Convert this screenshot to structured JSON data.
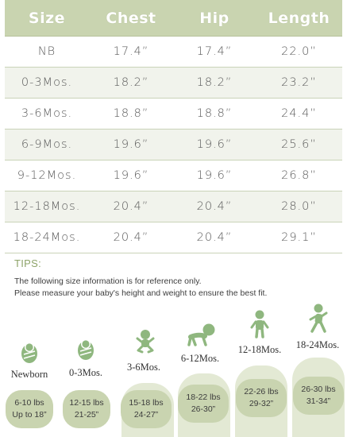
{
  "table": {
    "headers": [
      "Size",
      "Chest",
      "Hip",
      "Length"
    ],
    "rows": [
      [
        "NB",
        "17.4”",
        "17.4”",
        "22.0”"
      ],
      [
        "0-3Mos.",
        "18.2”",
        "18.2”",
        "23.2”"
      ],
      [
        "3-6Mos.",
        "18.8”",
        "18.8”",
        "24.4”"
      ],
      [
        "6-9Mos.",
        "19.6”",
        "19.6”",
        "25.6”"
      ],
      [
        "9-12Mos.",
        "19.6”",
        "19.6”",
        "26.8”"
      ],
      [
        "12-18Mos.",
        "20.4”",
        "20.4”",
        "28.0”"
      ],
      [
        "18-24Mos.",
        "20.4”",
        "20.4”",
        "29.1”"
      ]
    ]
  },
  "tips": {
    "title": "TIPS:",
    "line1": "The following size information is for reference only.",
    "line2": "Please measure your baby's height and weight to ensure the best fit."
  },
  "stages": [
    {
      "label": "Newborn",
      "weight": "6-10 lbs",
      "height": "Up to 18”",
      "icon": "swaddled-baby-icon"
    },
    {
      "label": "0-3Mos.",
      "weight": "12-15 lbs",
      "height": "21-25”",
      "icon": "swaddled-baby-icon"
    },
    {
      "label": "3-6Mos.",
      "weight": "15-18 lbs",
      "height": "24-27”",
      "icon": "sitting-baby-icon"
    },
    {
      "label": "6-12Mos.",
      "weight": "18-22 lbs",
      "height": "26-30”",
      "icon": "crawling-baby-icon"
    },
    {
      "label": "12-18Mos.",
      "weight": "22-26 lbs",
      "height": "29-32”",
      "icon": "standing-toddler-icon"
    },
    {
      "label": "18-24Mos.",
      "weight": "26-30 lbs",
      "height": "31-34”",
      "icon": "walking-toddler-icon"
    }
  ],
  "colors": {
    "header_bg": "#c9d4b0",
    "row_alt_bg": "#f1f3ec",
    "icon_green": "#8fb77f",
    "arch_bg": "#e3e9d4",
    "tips_title": "#8ea46a"
  }
}
